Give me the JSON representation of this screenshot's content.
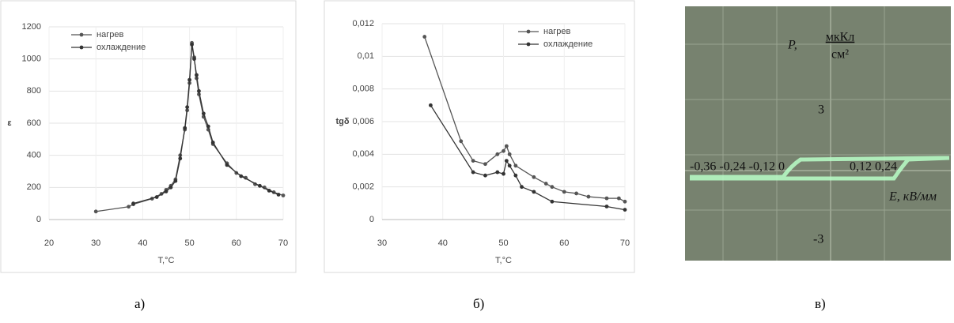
{
  "chart_data": [
    {
      "type": "line",
      "ylabel": "ε",
      "xlabel": "T,°C",
      "legend": "upper left",
      "grid": true,
      "xlim": [
        20,
        70
      ],
      "xticks": [
        20,
        30,
        40,
        50,
        60,
        70
      ],
      "ylim": [
        0,
        1200
      ],
      "yticks": [
        0,
        200,
        400,
        600,
        800,
        1000,
        1200
      ],
      "series": [
        {
          "name": "нагрев",
          "color": "#555555",
          "x": [
            30,
            37,
            38,
            42,
            44,
            45,
            46,
            47,
            48,
            49,
            49.5,
            50,
            50.5,
            51,
            51.5,
            52,
            53,
            54,
            55,
            58,
            60,
            62,
            64,
            66,
            68,
            70
          ],
          "values": [
            50,
            80,
            95,
            130,
            160,
            185,
            210,
            250,
            400,
            560,
            680,
            850,
            1100,
            1010,
            880,
            780,
            640,
            560,
            470,
            350,
            290,
            260,
            220,
            200,
            170,
            150
          ]
        },
        {
          "name": "охлаждение",
          "color": "#333333",
          "x": [
            38,
            43,
            45,
            46,
            47,
            48,
            49,
            49.5,
            50,
            50.5,
            51,
            51.5,
            52,
            53,
            54,
            55,
            58,
            61,
            65,
            67,
            69
          ],
          "values": [
            100,
            140,
            175,
            200,
            240,
            380,
            570,
            700,
            870,
            1090,
            1000,
            900,
            800,
            660,
            580,
            480,
            340,
            270,
            210,
            180,
            155
          ]
        }
      ]
    },
    {
      "type": "line",
      "ylabel": "tgδ",
      "xlabel": "T,°C",
      "legend": "upper right",
      "grid": true,
      "xlim": [
        30,
        70
      ],
      "xticks": [
        30,
        40,
        50,
        60,
        70
      ],
      "ylim": [
        0,
        0.012
      ],
      "yticks": [
        0,
        {
          "value": 0.002,
          "label": "0,002"
        },
        {
          "value": 0.004,
          "label": "0,004"
        },
        {
          "value": 0.006,
          "label": "0,006"
        },
        {
          "value": 0.008,
          "label": "0,008"
        },
        {
          "value": 0.01,
          "label": "0,01"
        },
        {
          "value": 0.012,
          "label": "0,012"
        }
      ],
      "series": [
        {
          "name": "нагрев",
          "color": "#555555",
          "x": [
            37,
            43,
            45,
            47,
            49,
            50,
            50.5,
            51,
            52,
            55,
            57,
            58,
            60,
            62,
            64,
            67,
            69,
            70
          ],
          "values": [
            0.0112,
            0.0048,
            0.0036,
            0.0034,
            0.004,
            0.0042,
            0.0045,
            0.004,
            0.0033,
            0.0026,
            0.0022,
            0.002,
            0.0017,
            0.0016,
            0.0014,
            0.0013,
            0.0013,
            0.0011
          ]
        },
        {
          "name": "охлаждение",
          "color": "#333333",
          "x": [
            38,
            45,
            47,
            49,
            50,
            50.5,
            51,
            52,
            53,
            55,
            58,
            67,
            70
          ],
          "values": [
            0.007,
            0.0029,
            0.0027,
            0.0029,
            0.0028,
            0.0036,
            0.0033,
            0.0027,
            0.002,
            0.0017,
            0.0011,
            0.0008,
            0.0006
          ]
        }
      ]
    }
  ],
  "oscilloscope": {
    "p_label": "P,",
    "p_unit_num": "мкКл",
    "p_unit_den": "см²",
    "y_top": "3",
    "y_bottom": "-3",
    "x_neg": "-0,36 -0,24 -0,12 0",
    "x_pos": "0,12 0,24",
    "e_label": "E, кВ/мм"
  },
  "captions": [
    "а)",
    "б)",
    "в)"
  ]
}
